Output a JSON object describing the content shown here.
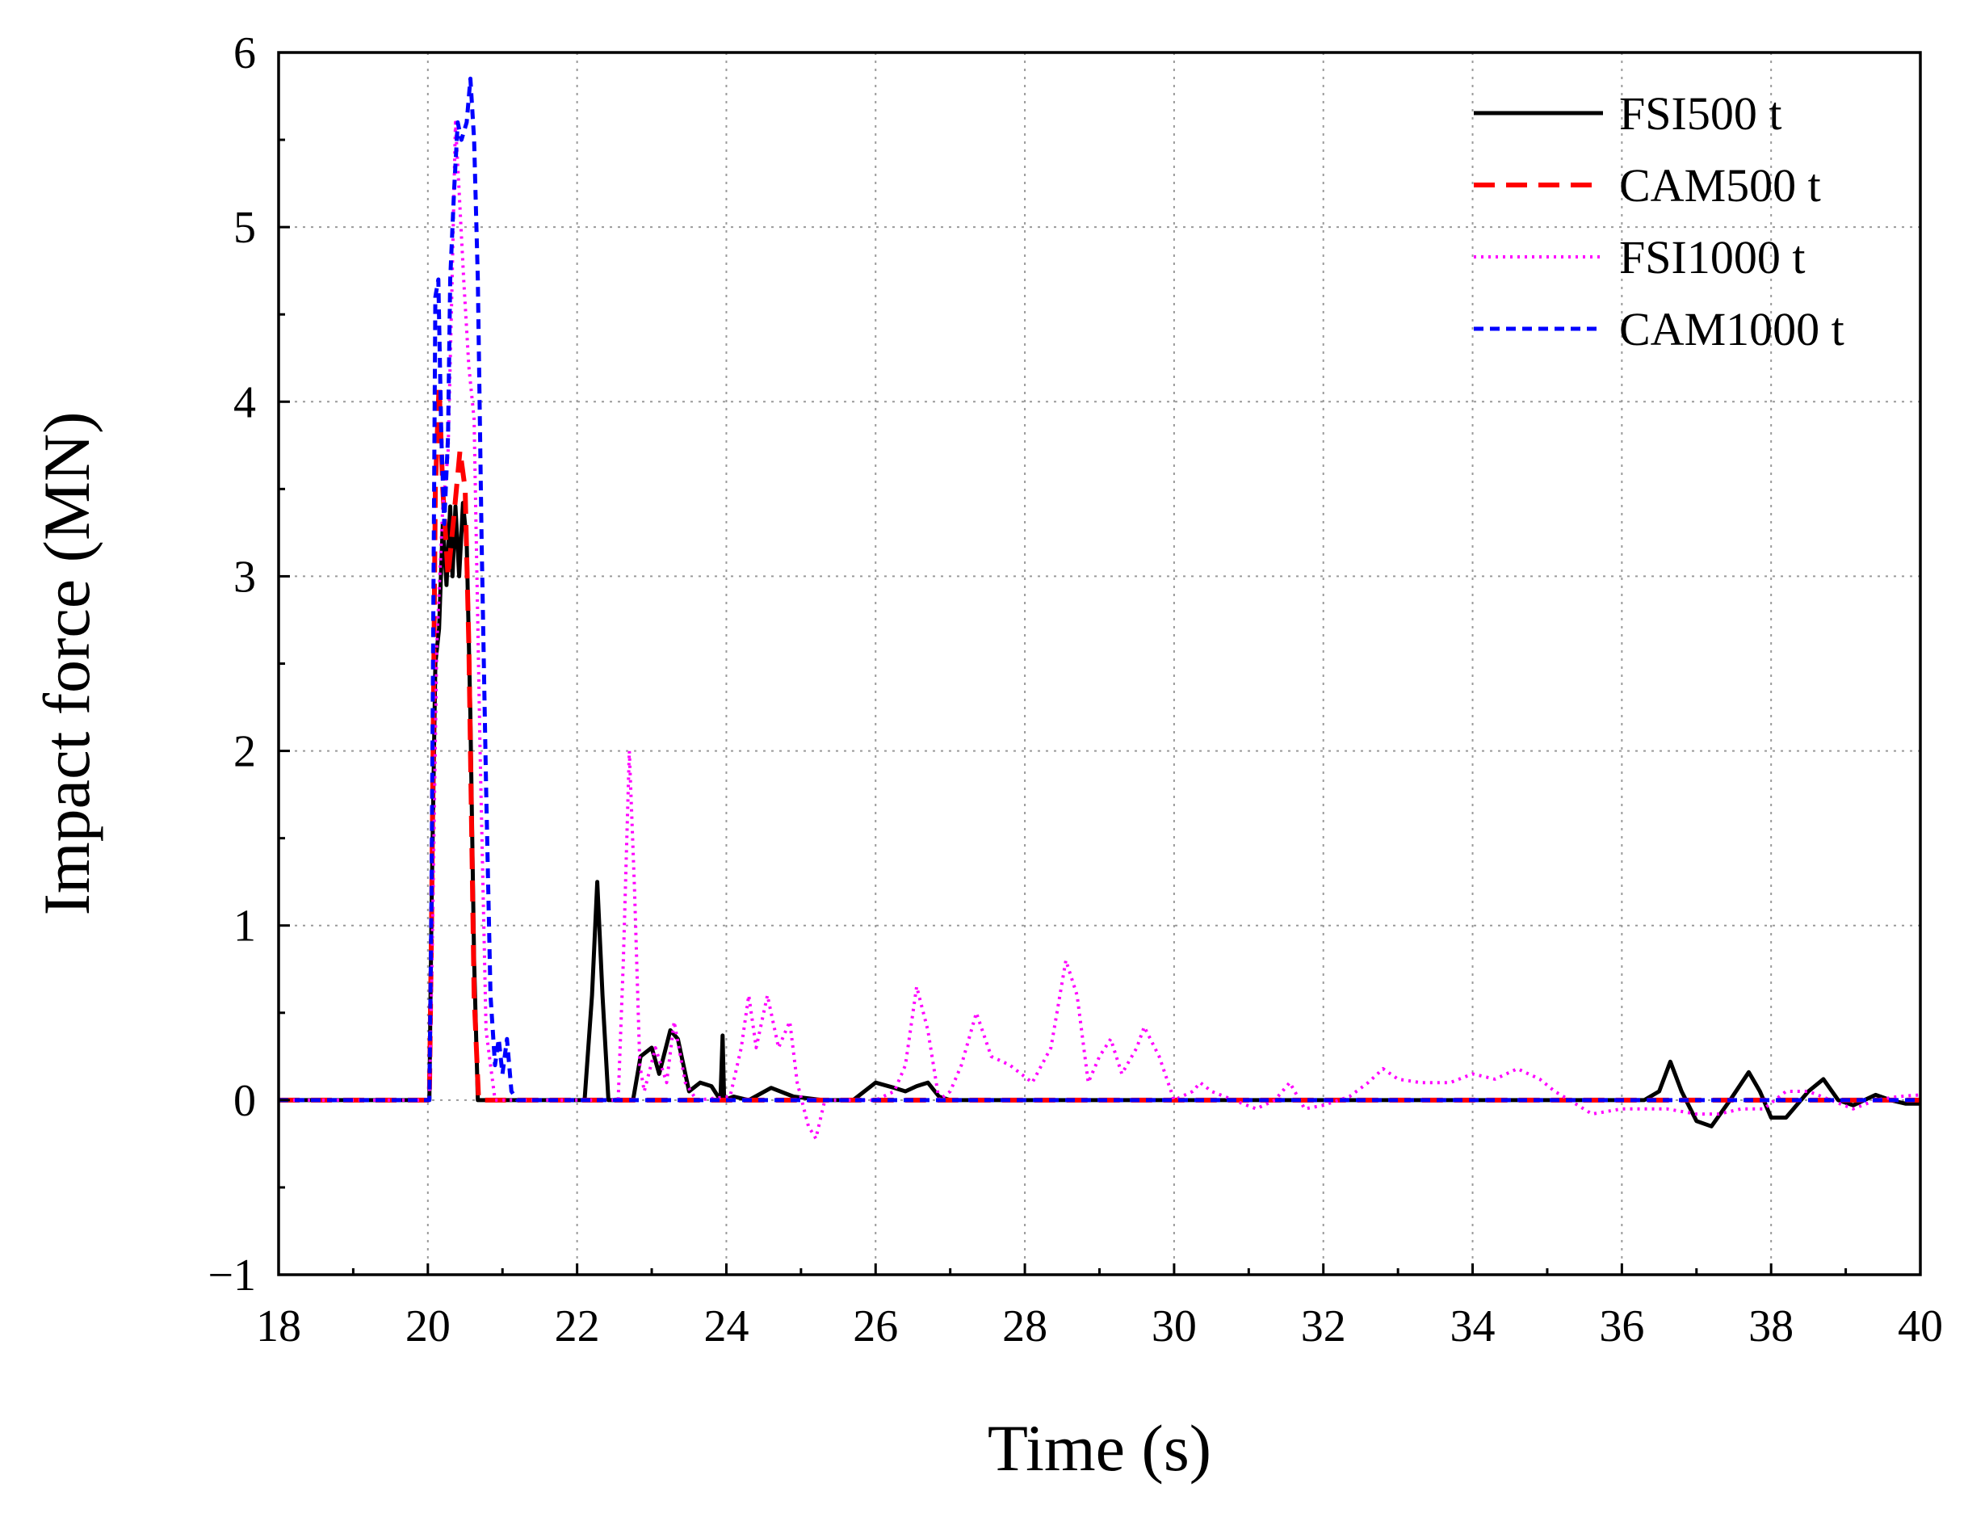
{
  "chart_data": {
    "type": "line",
    "title": "",
    "xlabel": "Time (s)",
    "ylabel": "Impact force (MN)",
    "xlim": [
      18,
      40
    ],
    "ylim": [
      -1,
      6
    ],
    "grid": true,
    "legend_position": "top-right",
    "x_ticks": [
      "18",
      "20",
      "22",
      "24",
      "26",
      "28",
      "30",
      "32",
      "34",
      "36",
      "38",
      "40"
    ],
    "y_ticks": [
      "−1",
      "0",
      "1",
      "2",
      "3",
      "4",
      "5",
      "6"
    ],
    "series": [
      {
        "name": "FSI500 t",
        "color": "#000000",
        "style": "solid",
        "points": [
          [
            18,
            0
          ],
          [
            20.02,
            0
          ],
          [
            20.05,
            1.1
          ],
          [
            20.1,
            2.5
          ],
          [
            20.15,
            2.7
          ],
          [
            20.2,
            3.3
          ],
          [
            20.25,
            2.95
          ],
          [
            20.3,
            3.4
          ],
          [
            20.33,
            3.0
          ],
          [
            20.37,
            3.4
          ],
          [
            20.42,
            3.0
          ],
          [
            20.47,
            3.42
          ],
          [
            20.52,
            3.2
          ],
          [
            20.57,
            2.2
          ],
          [
            20.62,
            0.8
          ],
          [
            20.67,
            0
          ],
          [
            22.1,
            0
          ],
          [
            22.2,
            0.6
          ],
          [
            22.27,
            1.25
          ],
          [
            22.34,
            0.6
          ],
          [
            22.42,
            0
          ],
          [
            22.75,
            0
          ],
          [
            22.85,
            0.25
          ],
          [
            23.0,
            0.3
          ],
          [
            23.1,
            0.15
          ],
          [
            23.25,
            0.4
          ],
          [
            23.35,
            0.35
          ],
          [
            23.5,
            0.05
          ],
          [
            23.65,
            0.1
          ],
          [
            23.8,
            0.08
          ],
          [
            23.92,
            0.0
          ],
          [
            23.95,
            0.37
          ],
          [
            23.97,
            0.0
          ],
          [
            24.1,
            0.02
          ],
          [
            24.3,
            0.0
          ],
          [
            24.6,
            0.07
          ],
          [
            24.9,
            0.02
          ],
          [
            25.3,
            0.0
          ],
          [
            25.7,
            0.0
          ],
          [
            26.0,
            0.1
          ],
          [
            26.25,
            0.07
          ],
          [
            26.4,
            0.05
          ],
          [
            26.55,
            0.08
          ],
          [
            26.7,
            0.1
          ],
          [
            26.85,
            0.02
          ],
          [
            27.0,
            0.0
          ],
          [
            36.3,
            0.0
          ],
          [
            36.5,
            0.05
          ],
          [
            36.65,
            0.22
          ],
          [
            36.8,
            0.05
          ],
          [
            37.0,
            -0.12
          ],
          [
            37.2,
            -0.15
          ],
          [
            37.45,
            0.0
          ],
          [
            37.7,
            0.16
          ],
          [
            37.85,
            0.05
          ],
          [
            38.0,
            -0.1
          ],
          [
            38.2,
            -0.1
          ],
          [
            38.5,
            0.05
          ],
          [
            38.7,
            0.12
          ],
          [
            38.9,
            0.0
          ],
          [
            39.1,
            -0.03
          ],
          [
            39.4,
            0.03
          ],
          [
            39.6,
            0.0
          ],
          [
            39.8,
            -0.02
          ],
          [
            40.0,
            -0.02
          ]
        ]
      },
      {
        "name": "CAM500 t",
        "color": "#ff0000",
        "style": "dashed",
        "points": [
          [
            18,
            0
          ],
          [
            20.02,
            0
          ],
          [
            20.05,
            1.0
          ],
          [
            20.1,
            3.5
          ],
          [
            20.15,
            4.1
          ],
          [
            20.2,
            3.5
          ],
          [
            20.27,
            3.0
          ],
          [
            20.35,
            3.35
          ],
          [
            20.43,
            3.72
          ],
          [
            20.5,
            3.5
          ],
          [
            20.55,
            2.6
          ],
          [
            20.62,
            0.6
          ],
          [
            20.68,
            0
          ],
          [
            36.5,
            0
          ],
          [
            40,
            0
          ]
        ]
      },
      {
        "name": "FSI1000 t",
        "color": "#ff00ff",
        "style": "dotted",
        "points": [
          [
            18,
            0
          ],
          [
            20.02,
            0
          ],
          [
            20.06,
            0.9
          ],
          [
            20.12,
            2.6
          ],
          [
            20.2,
            3.4
          ],
          [
            20.27,
            3.7
          ],
          [
            20.32,
            4.6
          ],
          [
            20.37,
            5.6
          ],
          [
            20.42,
            5.2
          ],
          [
            20.48,
            4.7
          ],
          [
            20.55,
            4.2
          ],
          [
            20.62,
            3.9
          ],
          [
            20.7,
            2.0
          ],
          [
            20.78,
            0.4
          ],
          [
            20.9,
            0
          ],
          [
            22.55,
            0
          ],
          [
            22.62,
            0.8
          ],
          [
            22.7,
            2.0
          ],
          [
            22.77,
            1.2
          ],
          [
            22.84,
            0.2
          ],
          [
            22.9,
            0.05
          ],
          [
            23.05,
            0.3
          ],
          [
            23.2,
            0.1
          ],
          [
            23.3,
            0.45
          ],
          [
            23.45,
            0.1
          ],
          [
            23.6,
            0.0
          ],
          [
            24.05,
            0.02
          ],
          [
            24.2,
            0.3
          ],
          [
            24.3,
            0.6
          ],
          [
            24.4,
            0.3
          ],
          [
            24.55,
            0.6
          ],
          [
            24.7,
            0.3
          ],
          [
            24.85,
            0.45
          ],
          [
            24.95,
            0.1
          ],
          [
            25.1,
            -0.15
          ],
          [
            25.2,
            -0.22
          ],
          [
            25.32,
            0.0
          ],
          [
            25.45,
            0.0
          ],
          [
            26.0,
            0.0
          ],
          [
            26.25,
            0.05
          ],
          [
            26.4,
            0.2
          ],
          [
            26.55,
            0.65
          ],
          [
            26.7,
            0.4
          ],
          [
            26.85,
            0.0
          ],
          [
            27.0,
            0.05
          ],
          [
            27.15,
            0.2
          ],
          [
            27.35,
            0.5
          ],
          [
            27.55,
            0.25
          ],
          [
            27.8,
            0.2
          ],
          [
            28.1,
            0.1
          ],
          [
            28.35,
            0.3
          ],
          [
            28.55,
            0.8
          ],
          [
            28.7,
            0.6
          ],
          [
            28.85,
            0.1
          ],
          [
            29.0,
            0.25
          ],
          [
            29.15,
            0.35
          ],
          [
            29.3,
            0.15
          ],
          [
            29.5,
            0.3
          ],
          [
            29.6,
            0.42
          ],
          [
            29.8,
            0.25
          ],
          [
            30.0,
            0.0
          ],
          [
            30.25,
            0.05
          ],
          [
            30.35,
            0.1
          ],
          [
            30.5,
            0.05
          ],
          [
            30.8,
            0.0
          ],
          [
            31.1,
            -0.05
          ],
          [
            31.35,
            0.0
          ],
          [
            31.55,
            0.1
          ],
          [
            31.75,
            -0.05
          ],
          [
            32.0,
            -0.03
          ],
          [
            32.35,
            0.02
          ],
          [
            32.6,
            0.1
          ],
          [
            32.8,
            0.18
          ],
          [
            33.0,
            0.12
          ],
          [
            33.3,
            0.1
          ],
          [
            33.7,
            0.1
          ],
          [
            34.0,
            0.15
          ],
          [
            34.3,
            0.12
          ],
          [
            34.6,
            0.18
          ],
          [
            34.9,
            0.12
          ],
          [
            35.1,
            0.05
          ],
          [
            35.3,
            0.0
          ],
          [
            35.6,
            -0.08
          ],
          [
            36.0,
            -0.05
          ],
          [
            36.3,
            -0.05
          ],
          [
            36.6,
            -0.05
          ],
          [
            37.0,
            -0.08
          ],
          [
            37.3,
            -0.08
          ],
          [
            37.6,
            -0.05
          ],
          [
            37.9,
            -0.05
          ],
          [
            38.2,
            0.05
          ],
          [
            38.5,
            0.05
          ],
          [
            38.8,
            0.0
          ],
          [
            39.1,
            -0.05
          ],
          [
            39.4,
            0.0
          ],
          [
            39.7,
            0.02
          ],
          [
            40.0,
            0.03
          ]
        ]
      },
      {
        "name": "CAM1000 t",
        "color": "#0000ff",
        "style": "dashed",
        "points": [
          [
            18,
            0
          ],
          [
            20.02,
            0
          ],
          [
            20.05,
            1.2
          ],
          [
            20.1,
            4.6
          ],
          [
            20.14,
            4.7
          ],
          [
            20.18,
            3.8
          ],
          [
            20.22,
            3.3
          ],
          [
            20.27,
            3.8
          ],
          [
            20.3,
            4.7
          ],
          [
            20.35,
            5.2
          ],
          [
            20.4,
            5.6
          ],
          [
            20.45,
            5.5
          ],
          [
            20.52,
            5.6
          ],
          [
            20.57,
            5.85
          ],
          [
            20.62,
            5.5
          ],
          [
            20.67,
            4.7
          ],
          [
            20.72,
            3.2
          ],
          [
            20.78,
            1.8
          ],
          [
            20.84,
            0.6
          ],
          [
            20.9,
            0.2
          ],
          [
            20.95,
            0.35
          ],
          [
            21.0,
            0.15
          ],
          [
            21.06,
            0.35
          ],
          [
            21.12,
            0.05
          ],
          [
            21.2,
            0
          ],
          [
            36.5,
            0
          ],
          [
            40,
            0
          ]
        ]
      }
    ]
  }
}
